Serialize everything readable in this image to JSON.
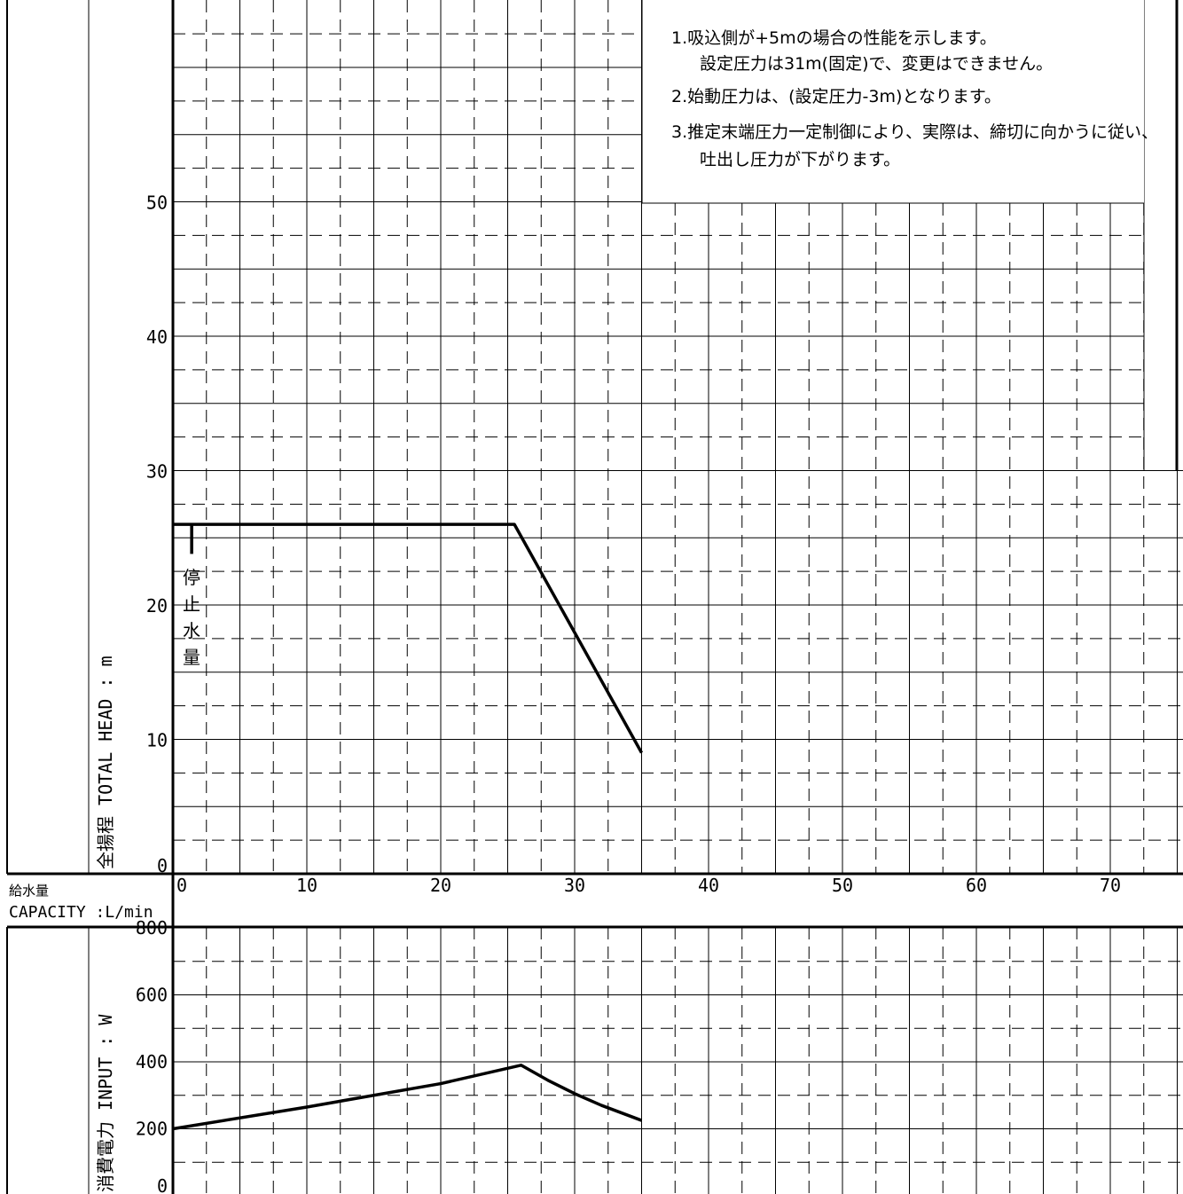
{
  "chart_data": [
    {
      "type": "line",
      "name": "head-curve",
      "ylabel": "全揚程 TOTAL HEAD : m",
      "xlabel": "",
      "xlim": [
        0,
        73
      ],
      "ylim": [
        0,
        65
      ],
      "yticks": [
        0,
        10,
        20,
        30,
        40,
        50
      ],
      "series": [
        {
          "x": [
            0,
            25.5,
            35
          ],
          "y": [
            26,
            26,
            9
          ]
        }
      ],
      "annotations": {
        "stop_flow_label": [
          "停",
          "止",
          "水",
          "量"
        ],
        "stop_flow_x": 1.4,
        "stop_flow_y": [
          26,
          23.8
        ]
      },
      "notes": [
        "1.吸込側が+5mの場合の性能を示します。",
        "設定圧力は31m(固定)で、変更はできません。",
        "2.始動圧力は、(設定圧力-3m)となります。",
        "3.推定末端圧力一定制御により、実際は、締切に向かうに従い、",
        "吐出し圧力が下がります。"
      ],
      "grid": true
    },
    {
      "type": "line",
      "name": "input-curve",
      "ylabel": "消費電力 INPUT : W",
      "xlim": [
        0,
        73
      ],
      "ylim": [
        0,
        800
      ],
      "yticks": [
        0,
        200,
        400,
        600,
        800
      ],
      "series": [
        {
          "x": [
            0,
            10,
            20,
            26,
            28,
            30,
            32,
            35
          ],
          "y": [
            200,
            265,
            335,
            390,
            345,
            305,
            270,
            225
          ]
        }
      ],
      "grid": true
    }
  ],
  "x_axis": {
    "label_jp": "給水量",
    "label_en": "CAPACITY :L/min",
    "ticks": [
      0,
      10,
      20,
      30,
      40,
      50,
      60,
      70
    ]
  },
  "colors": {
    "line": "#000000",
    "grid": "#000000",
    "background": "#ffffff"
  }
}
